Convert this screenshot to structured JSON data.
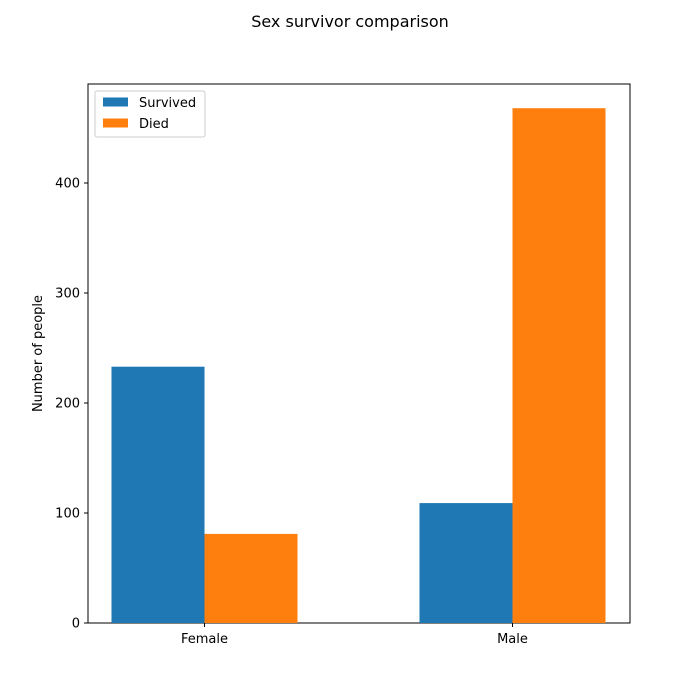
{
  "chart_data": {
    "type": "bar",
    "title": "Sex survivor comparison",
    "xlabel": "",
    "ylabel": "Number of people",
    "categories": [
      "Female",
      "Male"
    ],
    "series": [
      {
        "name": "Survived",
        "color": "#1f77b4",
        "values": [
          233,
          109
        ]
      },
      {
        "name": "Died",
        "color": "#ff7f0e",
        "values": [
          81,
          468
        ]
      }
    ],
    "ylim": [
      0,
      490
    ],
    "yticks": [
      0,
      100,
      200,
      300,
      400
    ],
    "legend": "top-left",
    "grid": false
  }
}
